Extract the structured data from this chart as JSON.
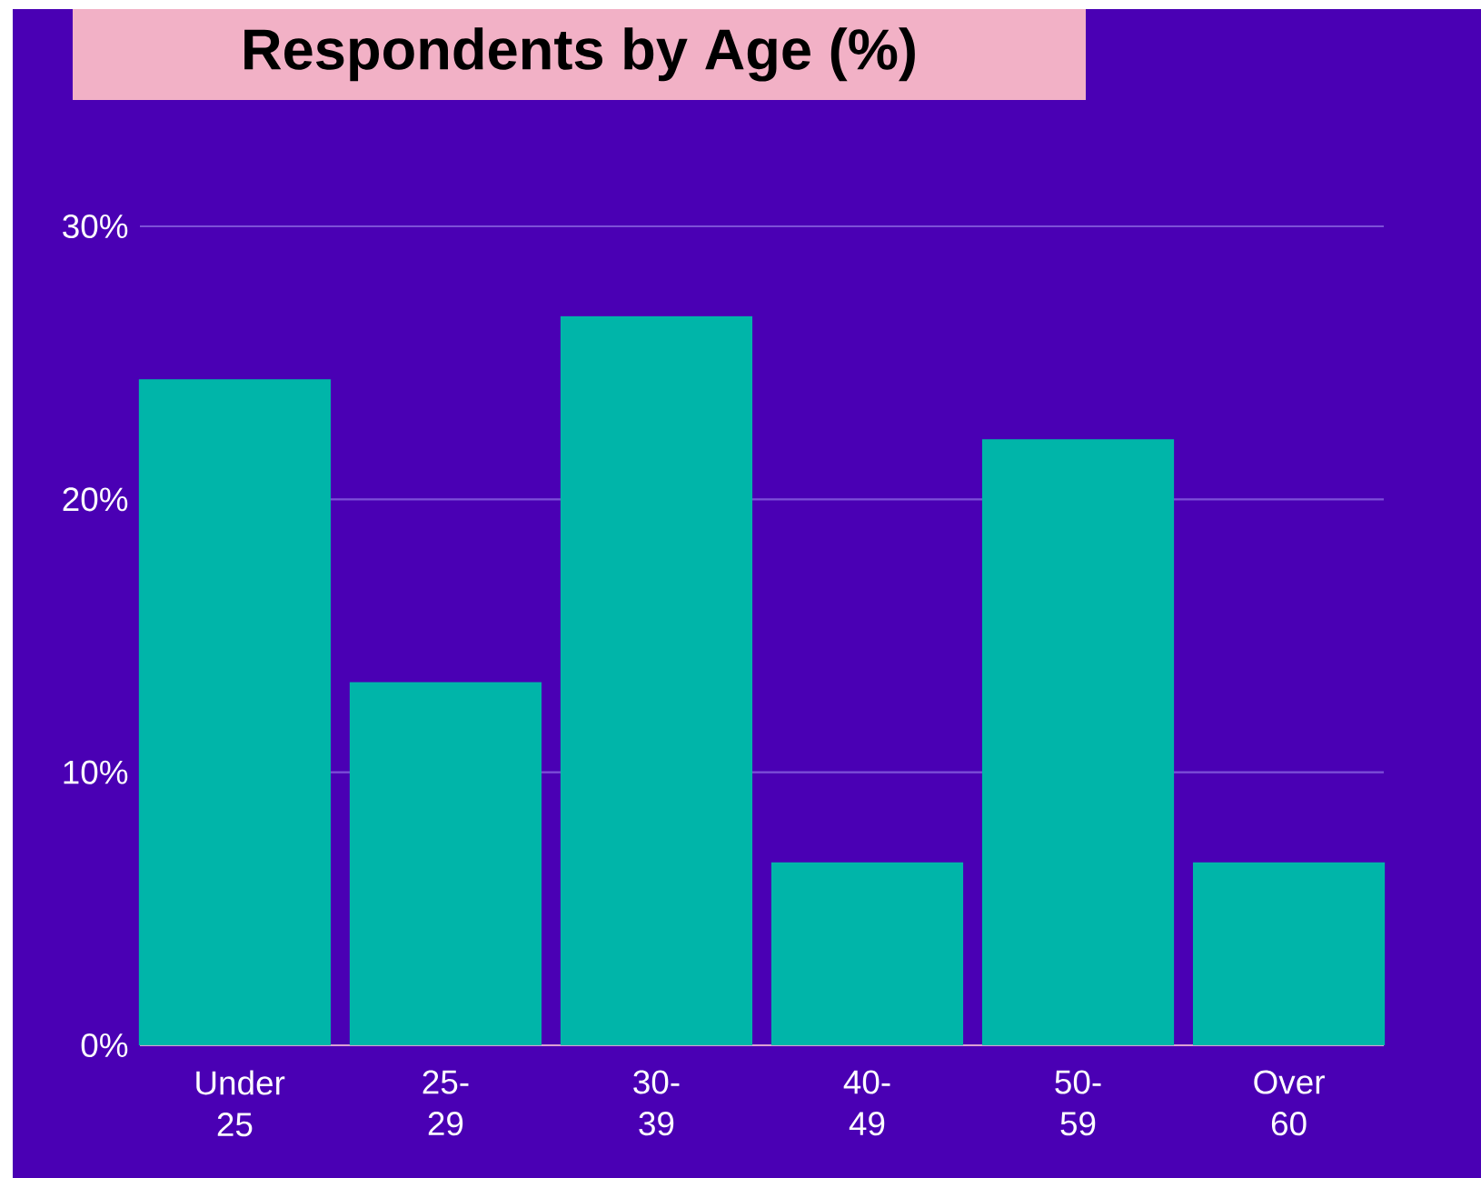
{
  "chart_data": {
    "type": "bar",
    "title": "Respondents by Age (%)",
    "categories": [
      "Under 25",
      "25-29",
      "30-39",
      "40-49",
      "50-59",
      "Over 60"
    ],
    "values": [
      24.4,
      13.3,
      26.7,
      6.7,
      22.2,
      6.7
    ],
    "color": "#00b5a9",
    "ylim": [
      0,
      30
    ],
    "yticks": [
      {
        "value": 0,
        "label": "0%"
      },
      {
        "value": 10,
        "label": "10%"
      },
      {
        "value": 20,
        "label": "20%"
      },
      {
        "value": 30,
        "label": "30%"
      }
    ],
    "grid": "y"
  }
}
